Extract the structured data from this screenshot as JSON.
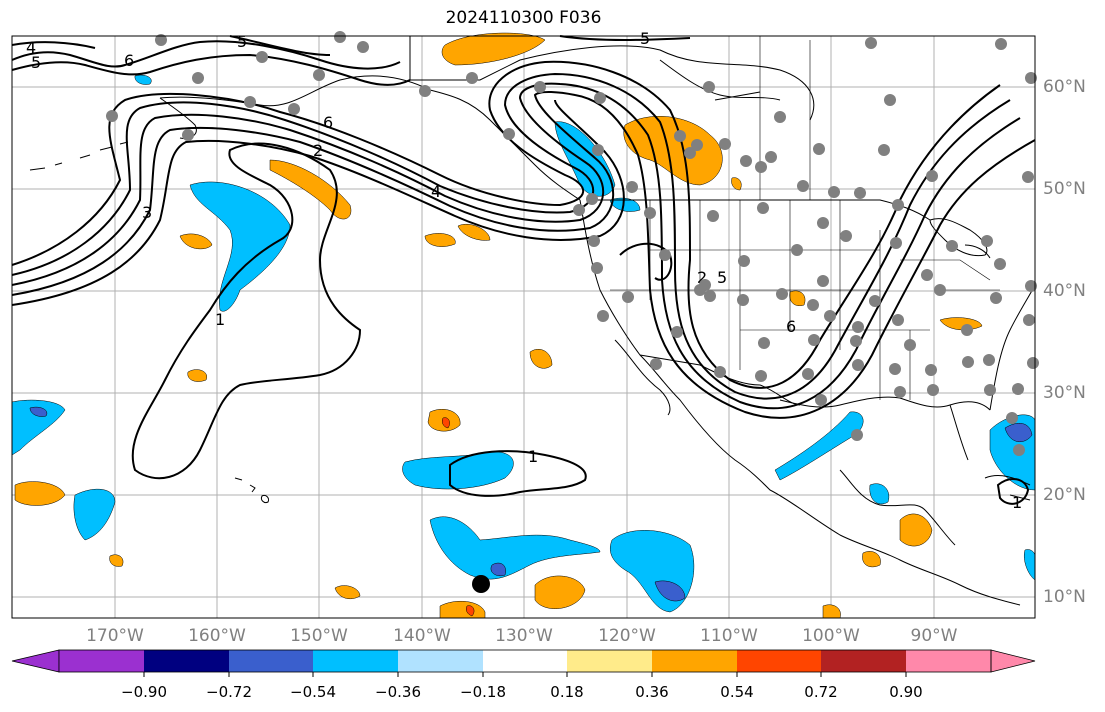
{
  "title": "2024110300 F036",
  "longitude_labels": [
    "170°W",
    "160°W",
    "150°W",
    "140°W",
    "130°W",
    "120°W",
    "110°W",
    "100°W",
    "90°W"
  ],
  "latitude_labels": [
    "60°N",
    "50°N",
    "40°N",
    "30°N",
    "20°N",
    "10°N"
  ],
  "contour_labels": [
    "4",
    "5",
    "6",
    "5",
    "5",
    "6",
    "2",
    "3",
    "4",
    "1",
    "1",
    "2",
    "5",
    "6",
    "1"
  ],
  "colorbar": {
    "tick_labels": [
      "−0.90",
      "−0.72",
      "−0.54",
      "−0.36",
      "−0.18",
      "0.18",
      "0.36",
      "0.54",
      "0.72",
      "0.90"
    ],
    "colors": [
      "#9b30d0",
      "#000080",
      "#3a5fcd",
      "#00bfff",
      "#b0e2ff",
      "#ffffff",
      "#ffeb8a",
      "#ffa500",
      "#ff4500",
      "#b22222",
      "#ff88aa"
    ]
  },
  "map_style": {
    "land_lines": "#000000",
    "grid": "#b0b0b0",
    "station_dots": "#808080",
    "highlight_dot": "#000000"
  }
}
